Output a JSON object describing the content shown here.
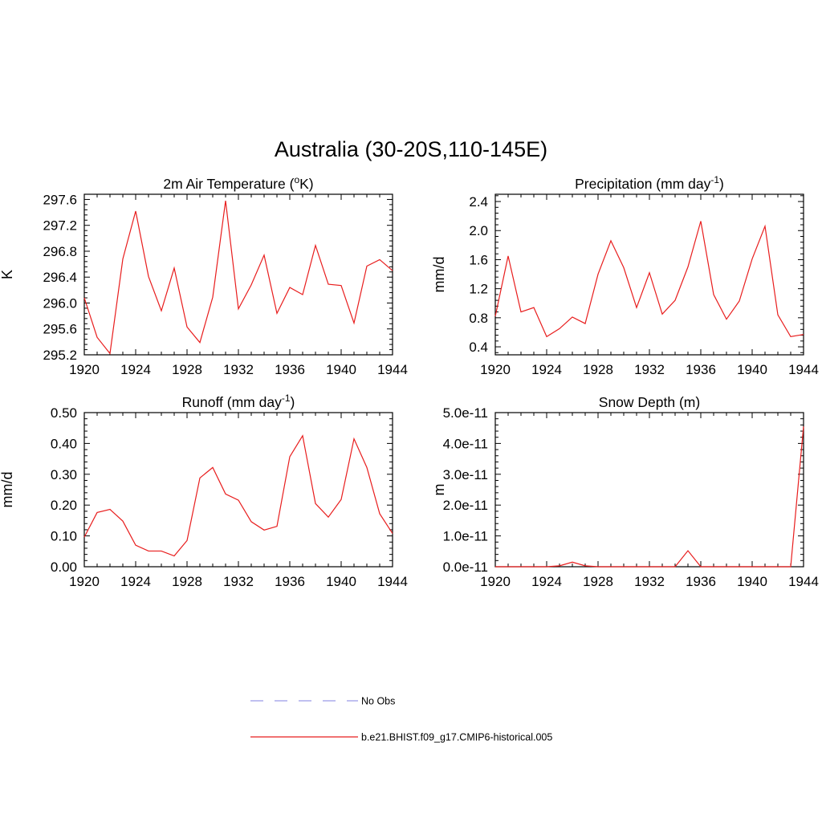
{
  "title": "Australia (30-20S,110-145E)",
  "series_color": "#e81d1d",
  "obs_color": "#9a9ae8",
  "legend": [
    {
      "label": "No Obs",
      "style": "dashed",
      "color": "#9a9ae8"
    },
    {
      "label": "b.e21.BHIST.f09_g17.CMIP6-historical.005",
      "style": "solid",
      "color": "#e81d1d"
    }
  ],
  "chart_data": [
    {
      "type": "line",
      "title": "2m Air Temperature (",
      "title_sup": "o",
      "title_tail": "K)",
      "ylabel": "K",
      "xlim": [
        1920,
        1944
      ],
      "ylim": [
        295.2,
        297.68
      ],
      "xticks": [
        1920,
        1924,
        1928,
        1932,
        1936,
        1940,
        1944
      ],
      "yticks": [
        "295.2",
        "295.6",
        "296.0",
        "296.4",
        "296.8",
        "297.2",
        "297.6"
      ],
      "ytick_values": [
        295.2,
        295.6,
        296.0,
        296.4,
        296.8,
        297.2,
        297.6
      ],
      "x": [
        1920,
        1921,
        1922,
        1923,
        1924,
        1925,
        1926,
        1927,
        1928,
        1929,
        1930,
        1931,
        1932,
        1933,
        1934,
        1935,
        1936,
        1937,
        1938,
        1939,
        1940,
        1941,
        1942,
        1943,
        1944
      ],
      "series": [
        {
          "values": [
            296.08,
            295.47,
            295.22,
            296.68,
            297.42,
            296.41,
            295.88,
            296.54,
            295.63,
            295.39,
            296.09,
            297.58,
            295.91,
            296.28,
            296.74,
            295.84,
            296.24,
            296.13,
            296.89,
            296.29,
            296.27,
            295.69,
            296.57,
            296.67,
            296.5
          ]
        }
      ]
    },
    {
      "type": "line",
      "title": "Precipitation (mm day",
      "title_sup": "-1",
      "title_tail": ")",
      "ylabel": "mm/d",
      "xlim": [
        1920,
        1944
      ],
      "ylim": [
        0.29,
        2.5
      ],
      "xticks": [
        1920,
        1924,
        1928,
        1932,
        1936,
        1940,
        1944
      ],
      "yticks": [
        "0.4",
        "0.8",
        "1.2",
        "1.6",
        "2.0",
        "2.4"
      ],
      "ytick_values": [
        0.4,
        0.8,
        1.2,
        1.6,
        2.0,
        2.4
      ],
      "x": [
        1920,
        1921,
        1922,
        1923,
        1924,
        1925,
        1926,
        1927,
        1928,
        1929,
        1930,
        1931,
        1932,
        1933,
        1934,
        1935,
        1936,
        1937,
        1938,
        1939,
        1940,
        1941,
        1942,
        1943,
        1944
      ],
      "series": [
        {
          "values": [
            0.82,
            1.65,
            0.88,
            0.94,
            0.54,
            0.65,
            0.81,
            0.72,
            1.4,
            1.86,
            1.49,
            0.94,
            1.42,
            0.85,
            1.04,
            1.5,
            2.13,
            1.12,
            0.78,
            1.03,
            1.61,
            2.06,
            0.84,
            0.54,
            0.57
          ]
        }
      ]
    },
    {
      "type": "line",
      "title": "Runoff (mm day",
      "title_sup": "-1",
      "title_tail": ")",
      "ylabel": "mm/d",
      "xlim": [
        1920,
        1944
      ],
      "ylim": [
        0,
        0.5
      ],
      "xticks": [
        1920,
        1924,
        1928,
        1932,
        1936,
        1940,
        1944
      ],
      "yticks": [
        "0.00",
        "0.10",
        "0.20",
        "0.30",
        "0.40",
        "0.50"
      ],
      "ytick_values": [
        0,
        0.1,
        0.2,
        0.3,
        0.4,
        0.5
      ],
      "x": [
        1920,
        1921,
        1922,
        1923,
        1924,
        1925,
        1926,
        1927,
        1928,
        1929,
        1930,
        1931,
        1932,
        1933,
        1934,
        1935,
        1936,
        1937,
        1938,
        1939,
        1940,
        1941,
        1942,
        1943,
        1944
      ],
      "series": [
        {
          "values": [
            0.096,
            0.176,
            0.186,
            0.148,
            0.07,
            0.051,
            0.051,
            0.035,
            0.085,
            0.288,
            0.322,
            0.236,
            0.216,
            0.146,
            0.119,
            0.131,
            0.357,
            0.425,
            0.205,
            0.161,
            0.218,
            0.415,
            0.322,
            0.172,
            0.108
          ]
        }
      ]
    },
    {
      "type": "line",
      "title": "Snow Depth (m)",
      "title_sup": "",
      "title_tail": "",
      "ylabel": "m",
      "xlim": [
        1920,
        1944
      ],
      "ylim": [
        0,
        5e-11
      ],
      "xticks": [
        1920,
        1924,
        1928,
        1932,
        1936,
        1940,
        1944
      ],
      "yticks": [
        "0.0e-11",
        "1.0e-11",
        "2.0e-11",
        "3.0e-11",
        "4.0e-11",
        "5.0e-11"
      ],
      "ytick_values": [
        0,
        1e-11,
        2e-11,
        3e-11,
        4e-11,
        5e-11
      ],
      "x": [
        1920,
        1921,
        1922,
        1923,
        1924,
        1925,
        1926,
        1927,
        1928,
        1929,
        1930,
        1931,
        1932,
        1933,
        1934,
        1935,
        1936,
        1937,
        1938,
        1939,
        1940,
        1941,
        1942,
        1943,
        1944
      ],
      "series": [
        {
          "values": [
            0,
            0,
            0,
            0,
            0,
            3e-13,
            1.5e-12,
            3e-13,
            0,
            0,
            0,
            0,
            0,
            0,
            0,
            5.2e-12,
            0,
            0,
            0,
            0,
            0,
            0,
            0,
            0,
            4.55e-11
          ]
        }
      ]
    }
  ]
}
